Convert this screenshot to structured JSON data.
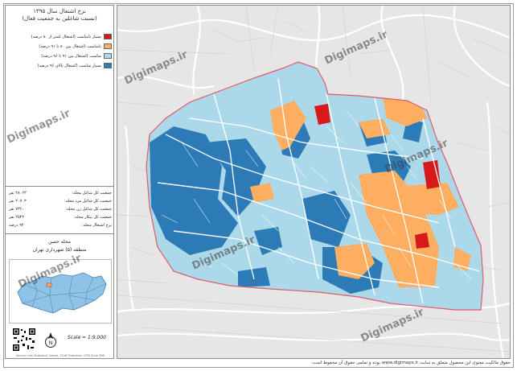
{
  "legend": {
    "title_line1": "نرخ اشتغال سال ۱۳۹۵",
    "title_line2": "(نسبت شاغلین به جمعیت فعال)",
    "items": [
      {
        "label": "بسیار نامناسب (اشتغال کمتر از ۸۰ درصد)",
        "color": "#d7191c"
      },
      {
        "label": "نامناسب (اشتغال بین ۸۰ تا ۹۱ درصد)",
        "color": "#fdae61"
      },
      {
        "label": "مناسب (اشتغال بین ۹۱ تا ۹۶ درصد)",
        "color": "#abd9e9"
      },
      {
        "label": "بسیار مناسب (اشتغال بالای ۹۶ درصد)",
        "color": "#2c7bb6"
      }
    ]
  },
  "stats": [
    {
      "label": "جمعیت کل شاغل محله:",
      "value": "۲۸۰۶۳ نفر"
    },
    {
      "label": "جمعیت کل شاغل مرد محله:",
      "value": "۲۰۷۰۳ نفر"
    },
    {
      "label": "جمعیت کل شاغل زن محله:",
      "value": "۷۳۶۰ نفر"
    },
    {
      "label": "جمعیت کل بیکار محله:",
      "value": "۲۵۴۲ نفر"
    },
    {
      "label": "نرخ اشتغال محله:",
      "value": "۹۲ درصد"
    }
  ],
  "location": {
    "line1": "محله حسن",
    "line2": "منطقه (۵) شهرداری تهران"
  },
  "scale": "Scale = 1:9,000",
  "credit": "Source: Iran Statistical Centre, 2016   Projection: UTM Zone 39N",
  "footer": "حقوق مالکیت معنوی این محصول متعلق به سایت www.digimaps.ir بوده و تمامی حقوق آن محفوظ است.",
  "watermark": "Digimaps.ir",
  "colors": {
    "very_poor": "#d7191c",
    "poor": "#fdae61",
    "good": "#abd9e9",
    "very_good": "#2c7bb6",
    "boundary": "#e05a6a",
    "basemap": "#e6e6e6"
  }
}
